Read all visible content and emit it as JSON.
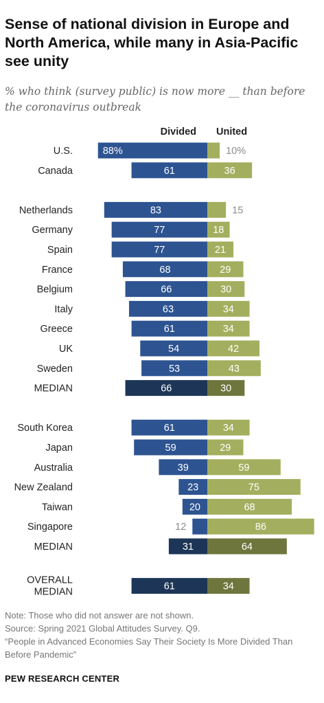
{
  "title": "Sense of national division in Europe and North America, while many in Asia-Pacific see unity",
  "subtitle": "% who think (survey public) is now more __ than before the coronavirus outbreak",
  "notes": {
    "note": "Note: Those who did not answer are not shown.",
    "source": "Source: Spring 2021 Global Attitudes Survey. Q9.",
    "report": "“People in Advanced Economies Say Their Society Is More Divided Than Before Pandemic”"
  },
  "brand": "PEW RESEARCH CENTER",
  "colors": {
    "divided": "#2d5491",
    "united": "#a3af5e",
    "divided_median": "#1d3657",
    "united_median": "#6f763d",
    "label_outside": "#8c8c8c"
  },
  "chart_data": {
    "type": "bar",
    "orientation": "horizontal-diverging",
    "series": [
      {
        "name": "Divided",
        "key": "divided"
      },
      {
        "name": "United",
        "key": "united"
      }
    ],
    "groups": [
      {
        "rows": [
          {
            "label": "U.S.",
            "divided": 88,
            "united": 10,
            "divided_text": "88%",
            "united_text": "10%"
          },
          {
            "label": "Canada",
            "divided": 61,
            "united": 36
          }
        ]
      },
      {
        "rows": [
          {
            "label": "Netherlands",
            "divided": 83,
            "united": 15
          },
          {
            "label": "Germany",
            "divided": 77,
            "united": 18
          },
          {
            "label": "Spain",
            "divided": 77,
            "united": 21
          },
          {
            "label": "France",
            "divided": 68,
            "united": 29
          },
          {
            "label": "Belgium",
            "divided": 66,
            "united": 30
          },
          {
            "label": "Italy",
            "divided": 63,
            "united": 34
          },
          {
            "label": "Greece",
            "divided": 61,
            "united": 34
          },
          {
            "label": "UK",
            "divided": 54,
            "united": 42
          },
          {
            "label": "Sweden",
            "divided": 53,
            "united": 43
          },
          {
            "label": "MEDIAN",
            "divided": 66,
            "united": 30,
            "median": true
          }
        ]
      },
      {
        "rows": [
          {
            "label": "South Korea",
            "divided": 61,
            "united": 34
          },
          {
            "label": "Japan",
            "divided": 59,
            "united": 29
          },
          {
            "label": "Australia",
            "divided": 39,
            "united": 59
          },
          {
            "label": "New Zealand",
            "divided": 23,
            "united": 75
          },
          {
            "label": "Taiwan",
            "divided": 20,
            "united": 68
          },
          {
            "label": "Singapore",
            "divided": 12,
            "united": 86
          },
          {
            "label": "MEDIAN",
            "divided": 31,
            "united": 64,
            "median": true
          }
        ]
      },
      {
        "rows": [
          {
            "label": "OVERALL MEDIAN",
            "label_lines": [
              "OVERALL",
              "MEDIAN"
            ],
            "divided": 61,
            "united": 34,
            "median": true
          }
        ]
      }
    ]
  }
}
